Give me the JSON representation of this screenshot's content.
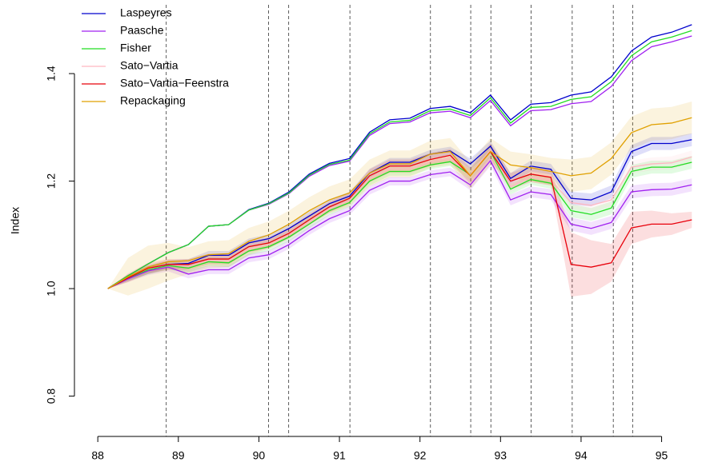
{
  "chart_data": {
    "type": "line",
    "y_label": "Index",
    "x": [
      88.125,
      88.375,
      88.625,
      88.875,
      89.125,
      89.375,
      89.625,
      89.875,
      90.125,
      90.375,
      90.625,
      90.875,
      91.125,
      91.375,
      91.625,
      91.875,
      92.125,
      92.375,
      92.625,
      92.875,
      93.125,
      93.375,
      93.625,
      93.875,
      94.125,
      94.375,
      94.625,
      94.875,
      95.125,
      95.375
    ],
    "xlim": [
      87.71,
      95.7
    ],
    "ylim": [
      0.725,
      1.528
    ],
    "xticks": [
      88,
      89,
      90,
      91,
      92,
      93,
      94,
      95
    ],
    "yticks": [
      0.8,
      {
        "value": 1,
        "label": "1.0"
      },
      1.2,
      1.4
    ],
    "vlines": [
      88.85,
      90.12,
      90.37,
      91.13,
      92.13,
      92.63,
      92.88,
      93.38,
      93.89,
      94.4,
      94.64
    ],
    "series": [
      {
        "name": "Laspeyres",
        "color": "#0000cd",
        "values": [
          1.0,
          1.02,
          1.035,
          1.045,
          1.047,
          1.062,
          1.062,
          1.085,
          1.093,
          1.112,
          1.135,
          1.158,
          1.172,
          1.215,
          1.235,
          1.235,
          1.25,
          1.256,
          1.232,
          1.265,
          1.205,
          1.228,
          1.222,
          1.168,
          1.165,
          1.18,
          1.255,
          1.27,
          1.27,
          1.277
        ],
        "band": [
          0,
          0.006,
          0.008,
          0.008,
          0.008,
          0.008,
          0.008,
          0.008,
          0.008,
          0.008,
          0.008,
          0.008,
          0.008,
          0.008,
          0.008,
          0.008,
          0.008,
          0.008,
          0.01,
          0.01,
          0.01,
          0.01,
          0.01,
          0.012,
          0.012,
          0.012,
          0.012,
          0.012,
          0.012,
          0.012
        ],
        "values_2": [
          1.0,
          1.024,
          1.046,
          1.067,
          1.082,
          1.116,
          1.119,
          1.147,
          1.159,
          1.18,
          1.213,
          1.233,
          1.242,
          1.291,
          1.314,
          1.317,
          1.335,
          1.339,
          1.327,
          1.36,
          1.314,
          1.343,
          1.346,
          1.36,
          1.366,
          1.394,
          1.442,
          1.468,
          1.477,
          1.491
        ]
      },
      {
        "name": "Paasche",
        "color": "#a020f0",
        "values": [
          1.0,
          1.018,
          1.033,
          1.04,
          1.027,
          1.035,
          1.035,
          1.057,
          1.063,
          1.082,
          1.108,
          1.13,
          1.145,
          1.183,
          1.2,
          1.2,
          1.212,
          1.217,
          1.193,
          1.238,
          1.165,
          1.18,
          1.175,
          1.12,
          1.112,
          1.123,
          1.18,
          1.184,
          1.185,
          1.193
        ],
        "band": [
          0,
          0.006,
          0.008,
          0.008,
          0.008,
          0.008,
          0.008,
          0.008,
          0.008,
          0.008,
          0.008,
          0.008,
          0.008,
          0.008,
          0.008,
          0.008,
          0.008,
          0.008,
          0.01,
          0.01,
          0.01,
          0.01,
          0.01,
          0.012,
          0.012,
          0.012,
          0.012,
          0.012,
          0.012,
          0.012
        ],
        "values_2": [
          1.0,
          1.024,
          1.046,
          1.067,
          1.082,
          1.116,
          1.119,
          1.146,
          1.157,
          1.177,
          1.209,
          1.229,
          1.237,
          1.285,
          1.307,
          1.31,
          1.327,
          1.33,
          1.318,
          1.35,
          1.303,
          1.331,
          1.333,
          1.344,
          1.348,
          1.376,
          1.424,
          1.45,
          1.459,
          1.47
        ]
      },
      {
        "name": "Fisher",
        "color": "#22dd22",
        "values": [
          1.0,
          1.02,
          1.035,
          1.043,
          1.038,
          1.05,
          1.048,
          1.07,
          1.078,
          1.096,
          1.12,
          1.145,
          1.16,
          1.2,
          1.218,
          1.218,
          1.23,
          1.236,
          1.212,
          1.255,
          1.185,
          1.203,
          1.196,
          1.145,
          1.138,
          1.15,
          1.218,
          1.226,
          1.226,
          1.235
        ],
        "band": [
          0,
          0.006,
          0.008,
          0.008,
          0.008,
          0.008,
          0.008,
          0.008,
          0.008,
          0.008,
          0.008,
          0.008,
          0.008,
          0.008,
          0.008,
          0.008,
          0.008,
          0.008,
          0.01,
          0.01,
          0.01,
          0.01,
          0.01,
          0.012,
          0.012,
          0.012,
          0.012,
          0.012,
          0.012,
          0.012
        ],
        "values_2": [
          1.0,
          1.024,
          1.046,
          1.067,
          1.082,
          1.116,
          1.119,
          1.146,
          1.158,
          1.178,
          1.211,
          1.231,
          1.239,
          1.288,
          1.31,
          1.313,
          1.331,
          1.334,
          1.322,
          1.355,
          1.308,
          1.337,
          1.339,
          1.352,
          1.357,
          1.385,
          1.433,
          1.459,
          1.468,
          1.48
        ]
      },
      {
        "name": "Sato−Vartia",
        "color": "#ffb6c1",
        "values": [
          1.0,
          1.021,
          1.037,
          1.045,
          1.041,
          1.053,
          1.052,
          1.074,
          1.082,
          1.1,
          1.124,
          1.149,
          1.164,
          1.205,
          1.223,
          1.223,
          1.236,
          1.242,
          1.212,
          1.258,
          1.19,
          1.208,
          1.202,
          1.16,
          1.155,
          1.165,
          1.226,
          1.232,
          1.234,
          1.245
        ],
        "band": [
          0,
          0.006,
          0.008,
          0.008,
          0.008,
          0.008,
          0.008,
          0.008,
          0.008,
          0.008,
          0.008,
          0.008,
          0.008,
          0.008,
          0.008,
          0.008,
          0.008,
          0.008,
          0.01,
          0.01,
          0.01,
          0.01,
          0.01,
          0.012,
          0.012,
          0.012,
          0.012,
          0.012,
          0.012,
          0.012
        ]
      },
      {
        "name": "Sato−Vartia−Feenstra",
        "color": "#e8000b",
        "values": [
          1.0,
          1.02,
          1.038,
          1.045,
          1.045,
          1.055,
          1.055,
          1.078,
          1.085,
          1.103,
          1.128,
          1.152,
          1.168,
          1.21,
          1.228,
          1.228,
          1.24,
          1.248,
          1.21,
          1.255,
          1.2,
          1.213,
          1.207,
          1.045,
          1.04,
          1.048,
          1.113,
          1.12,
          1.12,
          1.128
        ],
        "band": [
          0,
          0.008,
          0.01,
          0.01,
          0.01,
          0.01,
          0.01,
          0.01,
          0.01,
          0.01,
          0.01,
          0.01,
          0.01,
          0.012,
          0.012,
          0.012,
          0.012,
          0.012,
          0.015,
          0.015,
          0.015,
          0.015,
          0.015,
          0.06,
          0.05,
          0.035,
          0.03,
          0.025,
          0.02,
          0.015
        ]
      },
      {
        "name": "Repackaging",
        "color": "#e0a000",
        "values": [
          1.0,
          1.022,
          1.04,
          1.05,
          1.052,
          1.063,
          1.065,
          1.088,
          1.1,
          1.12,
          1.145,
          1.165,
          1.178,
          1.215,
          1.232,
          1.232,
          1.25,
          1.255,
          1.21,
          1.255,
          1.23,
          1.225,
          1.218,
          1.21,
          1.215,
          1.242,
          1.29,
          1.305,
          1.308,
          1.318
        ],
        "band": [
          0,
          0.035,
          0.04,
          0.035,
          0.025,
          0.025,
          0.025,
          0.025,
          0.025,
          0.025,
          0.025,
          0.025,
          0.025,
          0.025,
          0.025,
          0.025,
          0.025,
          0.025,
          0.025,
          0.025,
          0.025,
          0.025,
          0.025,
          0.03,
          0.03,
          0.03,
          0.03,
          0.03,
          0.03,
          0.03
        ]
      }
    ]
  }
}
